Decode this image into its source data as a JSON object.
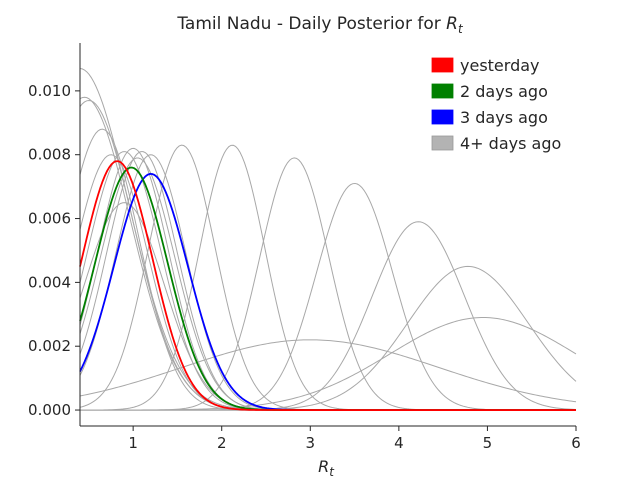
{
  "chart_data": {
    "type": "line",
    "title": "Tamil Nadu - Daily Posterior for R_t",
    "title_text": "Tamil Nadu - Daily Posterior for ",
    "title_symbol": "R",
    "title_subscript": "t",
    "xlabel_symbol": "R",
    "xlabel_subscript": "t",
    "xlim": [
      0.4,
      6.0
    ],
    "ylim": [
      -0.0005,
      0.0115
    ],
    "x_ticks": [
      1,
      2,
      3,
      4,
      5,
      6
    ],
    "x_tick_labels": [
      "1",
      "2",
      "3",
      "4",
      "5",
      "6"
    ],
    "y_ticks": [
      0.0,
      0.002,
      0.004,
      0.006,
      0.008,
      0.01
    ],
    "y_tick_labels": [
      "0.000",
      "0.002",
      "0.004",
      "0.006",
      "0.008",
      "0.010"
    ],
    "grid": false,
    "legend_position": "top-right",
    "legend": [
      {
        "label": "yesterday",
        "color": "#ff0000"
      },
      {
        "label": "2 days ago",
        "color": "#008000"
      },
      {
        "label": "3 days ago",
        "color": "#0000ff"
      },
      {
        "label": "4+ days ago",
        "color": "#b3b3b3"
      }
    ],
    "series": [
      {
        "group": "older",
        "color": "#a8a8a8",
        "peak_x": 0.4,
        "peak_y": 0.0107,
        "sigma": 0.55
      },
      {
        "group": "older",
        "color": "#a8a8a8",
        "peak_x": 0.45,
        "peak_y": 0.0098,
        "sigma": 0.52
      },
      {
        "group": "older",
        "color": "#a8a8a8",
        "peak_x": 0.5,
        "peak_y": 0.0097,
        "sigma": 0.5
      },
      {
        "group": "older",
        "color": "#a8a8a8",
        "peak_x": 0.65,
        "peak_y": 0.0088,
        "sigma": 0.42
      },
      {
        "group": "older",
        "color": "#a8a8a8",
        "peak_x": 0.75,
        "peak_y": 0.008,
        "sigma": 0.42
      },
      {
        "group": "older",
        "color": "#a8a8a8",
        "peak_x": 0.9,
        "peak_y": 0.0081,
        "sigma": 0.42
      },
      {
        "group": "older",
        "color": "#a8a8a8",
        "peak_x": 1.0,
        "peak_y": 0.0082,
        "sigma": 0.4
      },
      {
        "group": "older",
        "color": "#a8a8a8",
        "peak_x": 1.05,
        "peak_y": 0.0079,
        "sigma": 0.42
      },
      {
        "group": "older",
        "color": "#a8a8a8",
        "peak_x": 1.1,
        "peak_y": 0.0081,
        "sigma": 0.4
      },
      {
        "group": "older",
        "color": "#a8a8a8",
        "peak_x": 1.2,
        "peak_y": 0.008,
        "sigma": 0.4
      },
      {
        "group": "older",
        "color": "#a8a8a8",
        "peak_x": 1.55,
        "peak_y": 0.0083,
        "sigma": 0.38
      },
      {
        "group": "older",
        "color": "#a8a8a8",
        "peak_x": 2.12,
        "peak_y": 0.0083,
        "sigma": 0.37
      },
      {
        "group": "older",
        "color": "#a8a8a8",
        "peak_x": 2.82,
        "peak_y": 0.0079,
        "sigma": 0.39
      },
      {
        "group": "older",
        "color": "#a8a8a8",
        "peak_x": 3.5,
        "peak_y": 0.0071,
        "sigma": 0.43
      },
      {
        "group": "older",
        "color": "#a8a8a8",
        "peak_x": 4.22,
        "peak_y": 0.0059,
        "sigma": 0.52
      },
      {
        "group": "older",
        "color": "#a8a8a8",
        "peak_x": 4.78,
        "peak_y": 0.0045,
        "sigma": 0.68
      },
      {
        "group": "older",
        "color": "#a8a8a8",
        "peak_x": 4.95,
        "peak_y": 0.0029,
        "sigma": 1.05
      },
      {
        "group": "older",
        "color": "#a8a8a8",
        "peak_x": 3.0,
        "peak_y": 0.0022,
        "sigma": 1.45
      },
      {
        "group": "older",
        "color": "#a8a8a8",
        "peak_x": 0.9,
        "peak_y": 0.0065,
        "sigma": 0.45
      },
      {
        "group": "3 days ago",
        "color": "#0000ff",
        "peak_x": 1.2,
        "peak_y": 0.0074,
        "sigma": 0.42
      },
      {
        "group": "2 days ago",
        "color": "#008000",
        "peak_x": 0.98,
        "peak_y": 0.0076,
        "sigma": 0.41
      },
      {
        "group": "yesterday",
        "color": "#ff0000",
        "peak_x": 0.82,
        "peak_y": 0.0078,
        "sigma": 0.4
      }
    ],
    "baseline": {
      "color": "#333333",
      "value": 0.0
    }
  }
}
